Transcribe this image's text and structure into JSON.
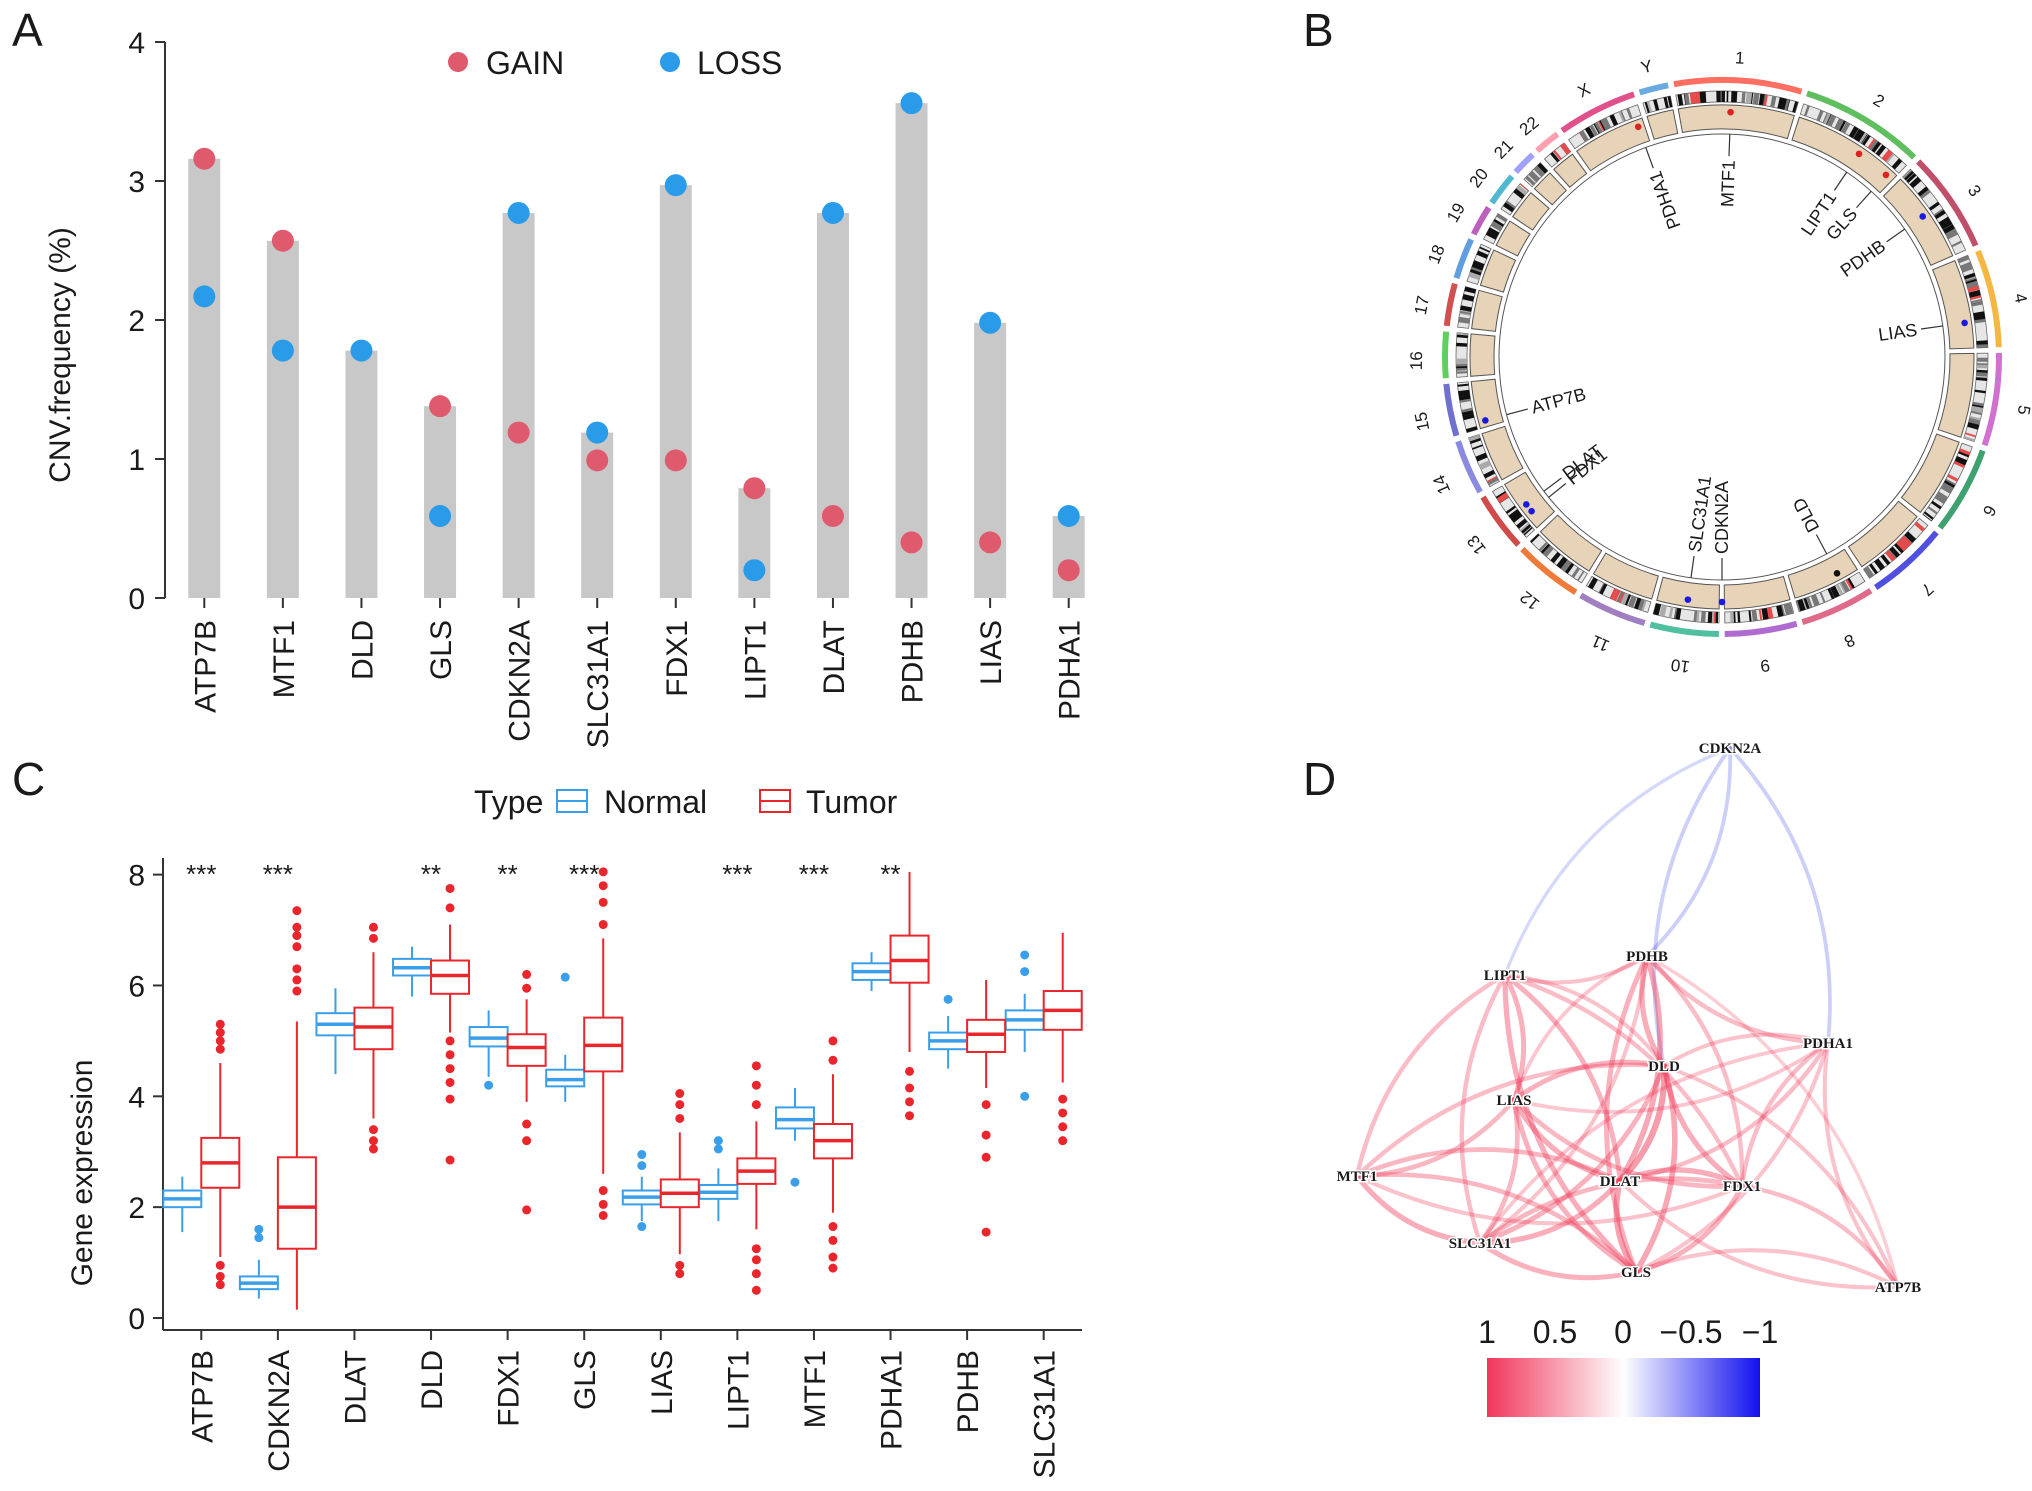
{
  "panels": {
    "a": "A",
    "b": "B",
    "c": "C",
    "d": "D"
  },
  "colors": {
    "gain": "#e05a6e",
    "loss": "#2a9be8",
    "normal": "#3a9fe8",
    "tumor": "#e8262b",
    "bar": "#c8c8c8",
    "positive": "#f0365a",
    "negative": "#3838f0",
    "ideogram_fill": "#e7d3b7"
  },
  "chart_data": [
    {
      "id": "A",
      "type": "scatter",
      "title": "",
      "xlabel": "",
      "ylabel": "CNV.frequency (%)",
      "ylim": [
        0,
        4
      ],
      "yticks": [
        0,
        1,
        2,
        3,
        4
      ],
      "legend": [
        "GAIN",
        "LOSS"
      ],
      "categories": [
        "ATP7B",
        "MTF1",
        "DLD",
        "GLS",
        "CDKN2A",
        "SLC31A1",
        "FDX1",
        "LIPT1",
        "DLAT",
        "PDHB",
        "LIAS",
        "PDHA1"
      ],
      "series": [
        {
          "name": "GAIN",
          "values": [
            3.16,
            2.57,
            0.0,
            1.38,
            1.19,
            0.99,
            0.99,
            0.79,
            0.59,
            0.4,
            0.4,
            0.2
          ]
        },
        {
          "name": "LOSS",
          "values": [
            2.17,
            1.78,
            1.78,
            0.59,
            2.77,
            1.19,
            2.97,
            0.2,
            2.77,
            3.56,
            1.98,
            0.59
          ]
        }
      ]
    },
    {
      "id": "B",
      "type": "other",
      "title": "",
      "chromosomes": [
        "1",
        "2",
        "3",
        "4",
        "5",
        "6",
        "7",
        "8",
        "9",
        "10",
        "11",
        "12",
        "13",
        "14",
        "15",
        "16",
        "17",
        "18",
        "19",
        "20",
        "21",
        "22",
        "X",
        "Y"
      ],
      "gene_labels": [
        "MTF1",
        "LIPT1",
        "GLS",
        "PDHB",
        "LIAS",
        "DLD",
        "CDKN2A",
        "SLC31A1",
        "FDX1",
        "DLAT",
        "ATP7B",
        "PDHA1"
      ]
    },
    {
      "id": "C",
      "type": "box",
      "title": "",
      "xlabel": "",
      "ylabel": "Gene expression",
      "ylim": [
        0,
        8.3
      ],
      "yticks": [
        0,
        2,
        4,
        6,
        8
      ],
      "legend_title": "Type",
      "legend": [
        "Normal",
        "Tumor"
      ],
      "categories": [
        "ATP7B",
        "CDKN2A",
        "DLAT",
        "DLD",
        "FDX1",
        "GLS",
        "LIAS",
        "LIPT1",
        "MTF1",
        "PDHA1",
        "PDHB",
        "SLC31A1"
      ],
      "significance": [
        "***",
        "***",
        "",
        "**",
        "**",
        "***",
        "",
        "***",
        "***",
        "**",
        "",
        ""
      ],
      "series": [
        {
          "name": "Normal",
          "boxes": [
            {
              "whislo": 1.55,
              "q1": 2.0,
              "med": 2.15,
              "q3": 2.3,
              "whishi": 2.55,
              "fliers": []
            },
            {
              "whislo": 0.35,
              "q1": 0.52,
              "med": 0.63,
              "q3": 0.75,
              "whishi": 1.05,
              "fliers": [
                1.45,
                1.6
              ]
            },
            {
              "whislo": 4.4,
              "q1": 5.1,
              "med": 5.3,
              "q3": 5.5,
              "whishi": 5.95,
              "fliers": []
            },
            {
              "whislo": 5.8,
              "q1": 6.18,
              "med": 6.32,
              "q3": 6.48,
              "whishi": 6.7,
              "fliers": []
            },
            {
              "whislo": 4.35,
              "q1": 4.9,
              "med": 5.05,
              "q3": 5.25,
              "whishi": 5.55,
              "fliers": [
                4.2
              ]
            },
            {
              "whislo": 3.9,
              "q1": 4.18,
              "med": 4.3,
              "q3": 4.48,
              "whishi": 4.75,
              "fliers": [
                6.15
              ]
            },
            {
              "whislo": 1.75,
              "q1": 2.05,
              "med": 2.18,
              "q3": 2.3,
              "whishi": 2.55,
              "fliers": [
                1.65,
                2.75,
                2.95
              ]
            },
            {
              "whislo": 1.75,
              "q1": 2.15,
              "med": 2.27,
              "q3": 2.4,
              "whishi": 2.7,
              "fliers": [
                3.05,
                3.2
              ]
            },
            {
              "whislo": 3.2,
              "q1": 3.42,
              "med": 3.58,
              "q3": 3.8,
              "whishi": 4.15,
              "fliers": [
                2.45
              ]
            },
            {
              "whislo": 5.9,
              "q1": 6.1,
              "med": 6.25,
              "q3": 6.4,
              "whishi": 6.6,
              "fliers": []
            },
            {
              "whislo": 4.5,
              "q1": 4.85,
              "med": 5.0,
              "q3": 5.15,
              "whishi": 5.45,
              "fliers": [
                5.75
              ]
            },
            {
              "whislo": 4.8,
              "q1": 5.2,
              "med": 5.38,
              "q3": 5.55,
              "whishi": 5.85,
              "fliers": [
                4.0,
                6.25,
                6.55
              ]
            }
          ]
        },
        {
          "name": "Tumor",
          "boxes": [
            {
              "whislo": 1.1,
              "q1": 2.35,
              "med": 2.8,
              "q3": 3.25,
              "whishi": 4.6,
              "fliers": [
                0.6,
                0.75,
                0.95,
                4.85,
                5.0,
                5.15,
                5.3
              ]
            },
            {
              "whislo": 0.15,
              "q1": 1.25,
              "med": 2.0,
              "q3": 2.9,
              "whishi": 5.35,
              "fliers": [
                5.9,
                6.1,
                6.3,
                6.7,
                6.9,
                7.05,
                7.35
              ]
            },
            {
              "whislo": 3.6,
              "q1": 4.85,
              "med": 5.25,
              "q3": 5.6,
              "whishi": 6.6,
              "fliers": [
                3.05,
                3.2,
                3.4,
                6.85,
                7.05
              ]
            },
            {
              "whislo": 5.15,
              "q1": 5.85,
              "med": 6.18,
              "q3": 6.45,
              "whishi": 7.1,
              "fliers": [
                2.85,
                3.95,
                4.25,
                4.5,
                4.75,
                5.0,
                7.4,
                7.75
              ]
            },
            {
              "whislo": 3.9,
              "q1": 4.55,
              "med": 4.88,
              "q3": 5.12,
              "whishi": 5.75,
              "fliers": [
                1.95,
                3.2,
                3.5,
                5.95,
                6.2
              ]
            },
            {
              "whislo": 2.6,
              "q1": 4.45,
              "med": 4.92,
              "q3": 5.42,
              "whishi": 6.85,
              "fliers": [
                1.85,
                2.05,
                2.3,
                7.1,
                7.5,
                7.8,
                8.05
              ]
            },
            {
              "whislo": 1.15,
              "q1": 2.0,
              "med": 2.25,
              "q3": 2.5,
              "whishi": 3.35,
              "fliers": [
                0.8,
                0.95,
                3.6,
                3.85,
                4.05
              ]
            },
            {
              "whislo": 1.6,
              "q1": 2.42,
              "med": 2.65,
              "q3": 2.88,
              "whishi": 3.55,
              "fliers": [
                0.5,
                0.8,
                1.05,
                1.25,
                3.85,
                4.2,
                4.55
              ]
            },
            {
              "whislo": 1.9,
              "q1": 2.88,
              "med": 3.2,
              "q3": 3.5,
              "whishi": 4.4,
              "fliers": [
                0.9,
                1.1,
                1.4,
                1.65,
                4.65,
                5.0
              ]
            },
            {
              "whislo": 4.8,
              "q1": 6.05,
              "med": 6.45,
              "q3": 6.9,
              "whishi": 8.05,
              "fliers": [
                3.65,
                3.9,
                4.15,
                4.45
              ]
            },
            {
              "whislo": 4.15,
              "q1": 4.8,
              "med": 5.12,
              "q3": 5.38,
              "whishi": 6.1,
              "fliers": [
                1.55,
                2.9,
                3.3,
                3.85
              ]
            },
            {
              "whislo": 4.25,
              "q1": 5.2,
              "med": 5.55,
              "q3": 5.9,
              "whishi": 6.95,
              "fliers": [
                3.2,
                3.45,
                3.7,
                3.95
              ]
            }
          ]
        }
      ]
    },
    {
      "id": "D",
      "type": "network",
      "title": "",
      "nodes": [
        "CDKN2A",
        "LIPT1",
        "PDHB",
        "PDHA1",
        "DLD",
        "LIAS",
        "MTF1",
        "DLAT",
        "FDX1",
        "SLC31A1",
        "GLS",
        "ATP7B"
      ],
      "edges": [
        {
          "source": "CDKN2A",
          "target": "LIPT1",
          "r": -0.22
        },
        {
          "source": "CDKN2A",
          "target": "PDHB",
          "r": -0.3
        },
        {
          "source": "CDKN2A",
          "target": "DLD",
          "r": -0.3
        },
        {
          "source": "CDKN2A",
          "target": "PDHA1",
          "r": -0.3
        },
        {
          "source": "LIPT1",
          "target": "PDHB",
          "r": 0.35
        },
        {
          "source": "LIPT1",
          "target": "DLAT",
          "r": 0.5
        },
        {
          "source": "LIPT1",
          "target": "GLS",
          "r": 0.55
        },
        {
          "source": "LIPT1",
          "target": "LIAS",
          "r": 0.5
        },
        {
          "source": "LIPT1",
          "target": "MTF1",
          "r": 0.4
        },
        {
          "source": "LIPT1",
          "target": "FDX1",
          "r": 0.4
        },
        {
          "source": "LIPT1",
          "target": "SLC31A1",
          "r": 0.4
        },
        {
          "source": "LIPT1",
          "target": "DLD",
          "r": 0.35
        },
        {
          "source": "PDHB",
          "target": "DLD",
          "r": 0.55
        },
        {
          "source": "PDHB",
          "target": "DLAT",
          "r": 0.6
        },
        {
          "source": "PDHB",
          "target": "GLS",
          "r": 0.5
        },
        {
          "source": "PDHB",
          "target": "FDX1",
          "r": 0.4
        },
        {
          "source": "PDHB",
          "target": "PDHA1",
          "r": 0.4
        },
        {
          "source": "PDHB",
          "target": "SLC31A1",
          "r": 0.35
        },
        {
          "source": "PDHB",
          "target": "LIAS",
          "r": 0.3
        },
        {
          "source": "PDHB",
          "target": "ATP7B",
          "r": 0.25
        },
        {
          "source": "PDHA1",
          "target": "DLD",
          "r": 0.35
        },
        {
          "source": "PDHA1",
          "target": "DLAT",
          "r": 0.4
        },
        {
          "source": "PDHA1",
          "target": "FDX1",
          "r": 0.4
        },
        {
          "source": "PDHA1",
          "target": "GLS",
          "r": 0.35
        },
        {
          "source": "PDHA1",
          "target": "ATP7B",
          "r": 0.35
        },
        {
          "source": "PDHA1",
          "target": "LIAS",
          "r": 0.3
        },
        {
          "source": "PDHA1",
          "target": "SLC31A1",
          "r": 0.3
        },
        {
          "source": "DLD",
          "target": "DLAT",
          "r": 0.7
        },
        {
          "source": "DLD",
          "target": "FDX1",
          "r": 0.55
        },
        {
          "source": "DLD",
          "target": "GLS",
          "r": 0.6
        },
        {
          "source": "DLD",
          "target": "LIAS",
          "r": 0.5
        },
        {
          "source": "DLD",
          "target": "SLC31A1",
          "r": 0.5
        },
        {
          "source": "DLD",
          "target": "MTF1",
          "r": 0.4
        },
        {
          "source": "DLD",
          "target": "ATP7B",
          "r": 0.35
        },
        {
          "source": "LIAS",
          "target": "DLAT",
          "r": 0.55
        },
        {
          "source": "LIAS",
          "target": "MTF1",
          "r": 0.45
        },
        {
          "source": "LIAS",
          "target": "GLS",
          "r": 0.5
        },
        {
          "source": "LIAS",
          "target": "SLC31A1",
          "r": 0.45
        },
        {
          "source": "LIAS",
          "target": "FDX1",
          "r": 0.45
        },
        {
          "source": "MTF1",
          "target": "DLAT",
          "r": 0.45
        },
        {
          "source": "MTF1",
          "target": "SLC31A1",
          "r": 0.55
        },
        {
          "source": "MTF1",
          "target": "GLS",
          "r": 0.45
        },
        {
          "source": "MTF1",
          "target": "FDX1",
          "r": 0.35
        },
        {
          "source": "DLAT",
          "target": "FDX1",
          "r": 0.55
        },
        {
          "source": "DLAT",
          "target": "GLS",
          "r": 0.65
        },
        {
          "source": "DLAT",
          "target": "SLC31A1",
          "r": 0.55
        },
        {
          "source": "DLAT",
          "target": "ATP7B",
          "r": 0.35
        },
        {
          "source": "FDX1",
          "target": "GLS",
          "r": 0.5
        },
        {
          "source": "FDX1",
          "target": "SLC31A1",
          "r": 0.45
        },
        {
          "source": "FDX1",
          "target": "ATP7B",
          "r": 0.4
        },
        {
          "source": "SLC31A1",
          "target": "GLS",
          "r": 0.5
        },
        {
          "source": "GLS",
          "target": "ATP7B",
          "r": 0.35
        }
      ],
      "colorbar_ticks": [
        "1",
        "0.5",
        "0",
        "−0.5",
        "−1"
      ]
    }
  ]
}
